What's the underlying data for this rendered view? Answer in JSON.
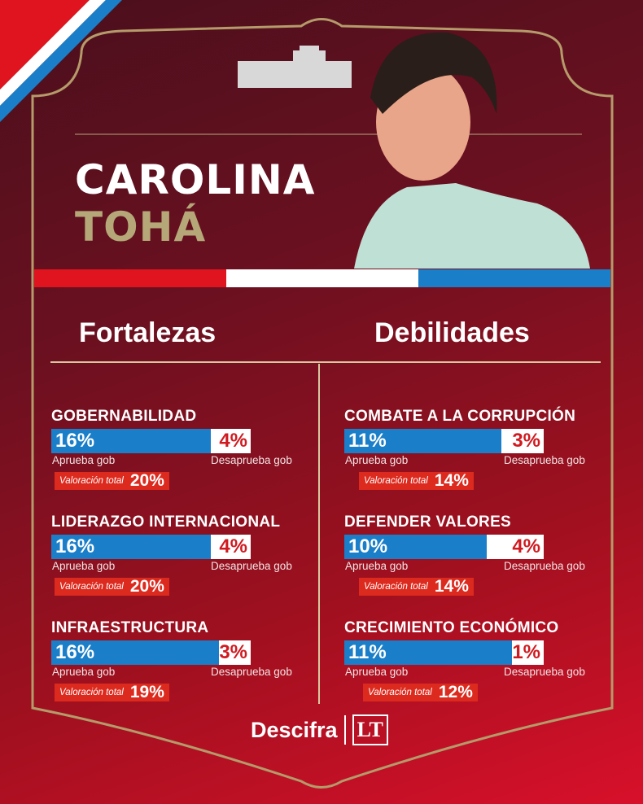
{
  "person": {
    "first_name": "CAROLINA",
    "last_name": "TOHÁ"
  },
  "columns": {
    "left": "Fortalezas",
    "right": "Debilidades"
  },
  "labels": {
    "approve": "Aprueba gob",
    "disapprove": "Desaprueba gob",
    "total": "Valoración total"
  },
  "brand": {
    "name": "Descifra",
    "mark": "LT"
  },
  "colors": {
    "approve": "#1a7ec8",
    "disapprove": "#ffffff",
    "total_bg": "#dd2a1e",
    "gold": "#b5a778",
    "flag_red": "#e0141e",
    "flag_blue": "#1a7ec8"
  },
  "chart_data": {
    "type": "bar",
    "groups": [
      {
        "name": "Fortalezas",
        "items": [
          {
            "category": "GOBERNABILIDAD",
            "approve": 16,
            "disapprove": 4,
            "total": 20,
            "approve_text": "16%",
            "disapprove_text": "4%",
            "total_text": "20%"
          },
          {
            "category": "LIDERAZGO INTERNACIONAL",
            "approve": 16,
            "disapprove": 4,
            "total": 20,
            "approve_text": "16%",
            "disapprove_text": "4%",
            "total_text": "20%"
          },
          {
            "category": "INFRAESTRUCTURA",
            "approve": 16,
            "disapprove": 3,
            "total": 19,
            "approve_text": "16%",
            "disapprove_text": "3%",
            "total_text": "19%"
          }
        ]
      },
      {
        "name": "Debilidades",
        "items": [
          {
            "category": "COMBATE A LA CORRUPCIÓN",
            "approve": 11,
            "disapprove": 3,
            "total": 14,
            "approve_text": "11%",
            "disapprove_text": "3%",
            "total_text": "14%"
          },
          {
            "category": "DEFENDER VALORES",
            "approve": 10,
            "disapprove": 4,
            "total": 14,
            "approve_text": "10%",
            "disapprove_text": "4%",
            "total_text": "14%"
          },
          {
            "category": "CRECIMIENTO ECONÓMICO",
            "approve": 11,
            "disapprove": 1,
            "total": 12,
            "approve_text": "11%",
            "disapprove_text": "1%",
            "total_text": "12%"
          }
        ]
      }
    ]
  }
}
